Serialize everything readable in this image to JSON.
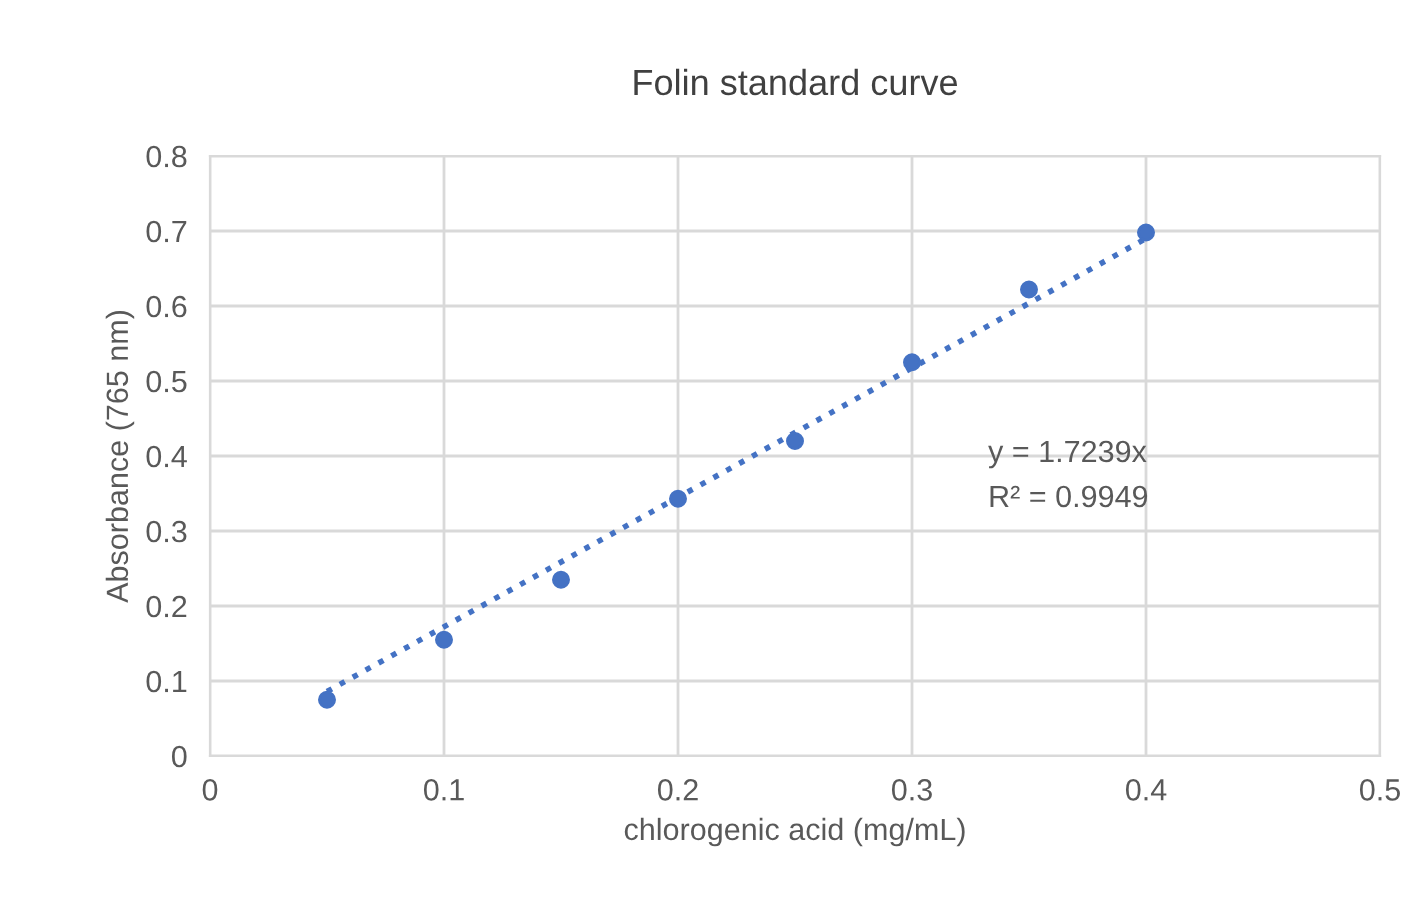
{
  "chart_data": {
    "type": "scatter",
    "title": "Folin standard curve",
    "xlabel": "chlorogenic acid (mg/mL)",
    "ylabel": "Absorbance (765 nm)",
    "x": [
      0.05,
      0.1,
      0.15,
      0.2,
      0.25,
      0.3,
      0.35,
      0.4
    ],
    "series": [
      {
        "color": "#4472c4",
        "values": [
          0.075,
          0.155,
          0.235,
          0.343,
          0.42,
          0.525,
          0.622,
          0.698
        ],
        "marker": "circle"
      },
      {
        "type": "line",
        "color": "#4472c4",
        "x": [
          0.05,
          0.4
        ],
        "values": [
          0.086,
          0.69
        ],
        "line_style": "dotted",
        "marker": "none"
      }
    ],
    "annotations": [
      "y = 1.7239x",
      "R² = 0.9949"
    ],
    "xlim": [
      0,
      0.5
    ],
    "ylim": [
      0,
      0.8
    ],
    "xticks": [
      0,
      0.1,
      0.2,
      0.3,
      0.4,
      0.5
    ],
    "yticks": [
      0,
      0.1,
      0.2,
      0.3,
      0.4,
      0.5,
      0.6,
      0.7,
      0.8
    ],
    "grid": true
  }
}
